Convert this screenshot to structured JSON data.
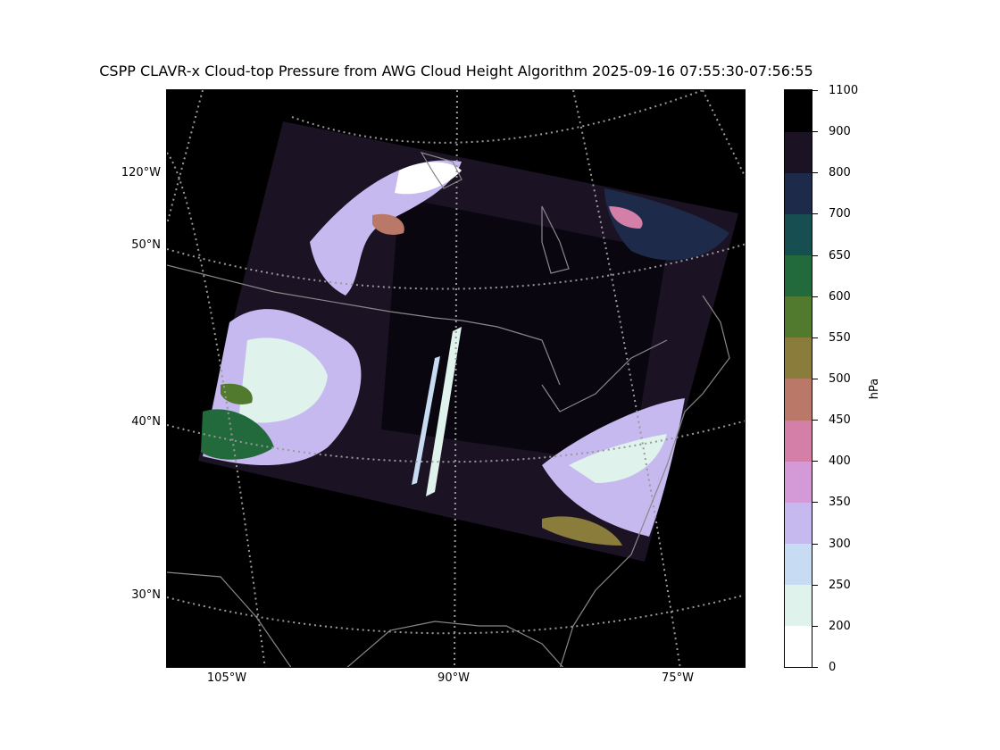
{
  "title": "CSPP CLAVR-x Cloud-top Pressure from AWG Cloud Height Algorithm 2025-09-16 07:55:30-07:56:55",
  "lat_labels": [
    "50°N",
    "40°N",
    "30°N"
  ],
  "lon_labels": [
    "105°W",
    "90°W",
    "75°W"
  ],
  "lon_left_label": "120°W",
  "colorbar": {
    "unit": "hPa",
    "ticks": [
      "0",
      "200",
      "250",
      "300",
      "350",
      "400",
      "450",
      "500",
      "550",
      "600",
      "650",
      "700",
      "800",
      "900",
      "1100"
    ],
    "segments": [
      {
        "from": 0,
        "to": 200,
        "color": "#ffffff"
      },
      {
        "from": 200,
        "to": 250,
        "color": "#dff2ec"
      },
      {
        "from": 250,
        "to": 300,
        "color": "#c7dcf2"
      },
      {
        "from": 300,
        "to": 350,
        "color": "#c6b9ef"
      },
      {
        "from": 350,
        "to": 400,
        "color": "#d49ad8"
      },
      {
        "from": 400,
        "to": 450,
        "color": "#d47fa8"
      },
      {
        "from": 450,
        "to": 500,
        "color": "#ba7868"
      },
      {
        "from": 500,
        "to": 550,
        "color": "#8a7c3a"
      },
      {
        "from": 550,
        "to": 600,
        "color": "#527a2e"
      },
      {
        "from": 600,
        "to": 650,
        "color": "#226a3c"
      },
      {
        "from": 650,
        "to": 700,
        "color": "#164e52"
      },
      {
        "from": 700,
        "to": 800,
        "color": "#1d2a4a"
      },
      {
        "from": 800,
        "to": 900,
        "color": "#1b1224"
      },
      {
        "from": 900,
        "to": 1100,
        "color": "#000000"
      }
    ]
  }
}
